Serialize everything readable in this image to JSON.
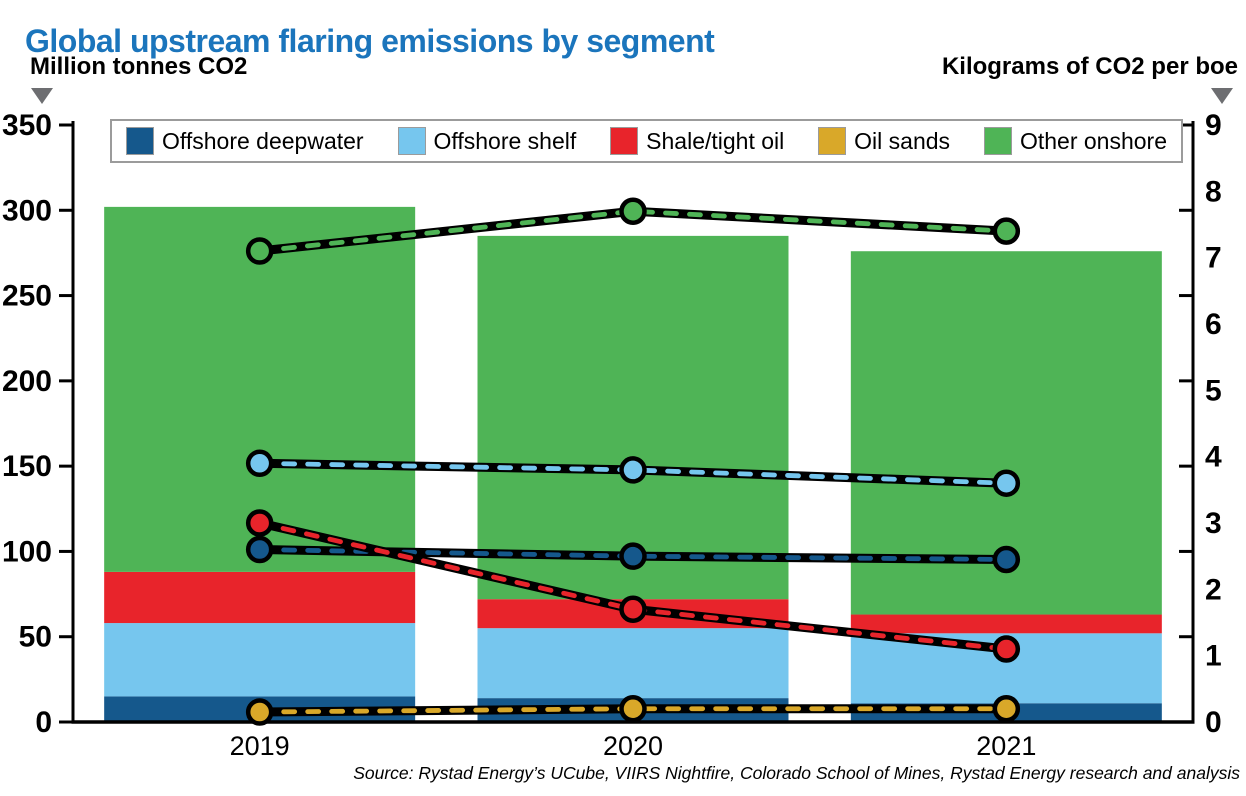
{
  "title": "Global upstream flaring emissions by segment",
  "left_axis": {
    "label": "Million tonnes CO2",
    "min": 0,
    "max": 350,
    "ticks": [
      0,
      50,
      100,
      150,
      200,
      250,
      300,
      350
    ]
  },
  "right_axis": {
    "label": "Kilograms of CO2 per boe",
    "min": 0,
    "max": 9,
    "labels": [
      0,
      1,
      2,
      3,
      4,
      5,
      6,
      7,
      8,
      9
    ]
  },
  "x_axis": {
    "categories": [
      "2019",
      "2020",
      "2021"
    ]
  },
  "legend": [
    {
      "label": "Offshore deepwater",
      "color": "#15588c"
    },
    {
      "label": "Offshore shelf",
      "color": "#76c6ee"
    },
    {
      "label": "Shale/tight oil",
      "color": "#e8242b"
    },
    {
      "label": "Oil sands",
      "color": "#d9a829"
    },
    {
      "label": "Other onshore",
      "color": "#4fb456"
    }
  ],
  "colors": {
    "title": "#1b75bc",
    "axis": "#000000",
    "arrow": "#6d6e71",
    "legend_border": "#9b9b9b"
  },
  "source": "Source: Rystad Energy’s UCube, VIIRS Nightfire, Colorado School of Mines, Rystad Energy research and analysis",
  "chart_data": [
    {
      "type": "bar",
      "stacked": true,
      "categories": [
        "2019",
        "2020",
        "2021"
      ],
      "ylabel": "Million tonnes CO2",
      "ylim": [
        0,
        350
      ],
      "grid": false,
      "series": [
        {
          "name": "Offshore deepwater",
          "color": "#15588c",
          "values": [
            15,
            14,
            11
          ]
        },
        {
          "name": "Offshore shelf",
          "color": "#76c6ee",
          "values": [
            43,
            41,
            41
          ]
        },
        {
          "name": "Shale/tight oil",
          "color": "#e8242b",
          "values": [
            30,
            17,
            11
          ]
        },
        {
          "name": "Oil sands",
          "color": "#d9a829",
          "values": [
            0,
            0,
            0
          ]
        },
        {
          "name": "Other onshore",
          "color": "#4fb456",
          "values": [
            214,
            213,
            213
          ]
        }
      ],
      "totals": [
        302,
        285,
        276
      ]
    },
    {
      "type": "line",
      "categories": [
        "2019",
        "2020",
        "2021"
      ],
      "ylabel": "Kilograms of CO2 per boe",
      "ylim": [
        0,
        9
      ],
      "style": "black casing with colored dashes and circle markers",
      "series": [
        {
          "name": "Other onshore",
          "color": "#4fb456",
          "values": [
            7.1,
            7.7,
            7.4
          ]
        },
        {
          "name": "Offshore shelf",
          "color": "#76c6ee",
          "values": [
            3.9,
            3.8,
            3.6
          ]
        },
        {
          "name": "Offshore deepwater",
          "color": "#15588c",
          "values": [
            2.6,
            2.5,
            2.45
          ]
        },
        {
          "name": "Shale/tight oil",
          "color": "#e8242b",
          "values": [
            3.0,
            1.7,
            1.1
          ]
        },
        {
          "name": "Oil sands",
          "color": "#d9a829",
          "values": [
            0.15,
            0.2,
            0.2
          ]
        }
      ]
    }
  ]
}
